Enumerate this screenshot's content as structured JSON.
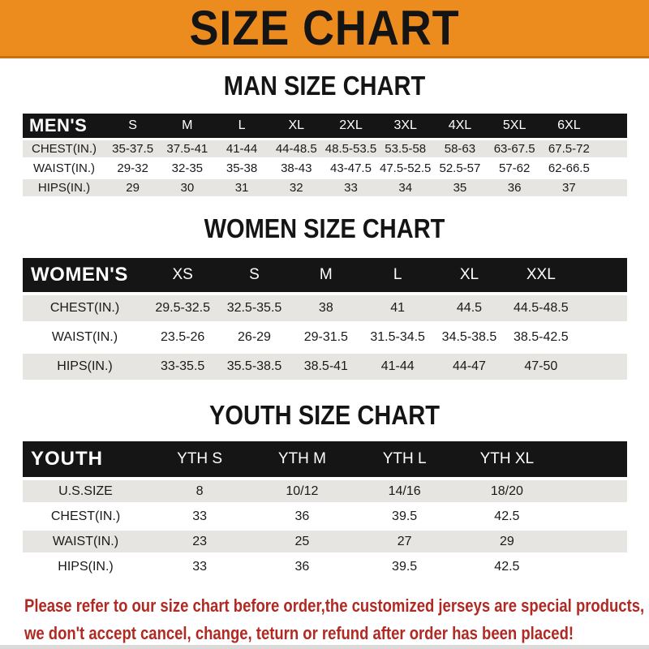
{
  "banner": {
    "title": "SIZE CHART"
  },
  "colors": {
    "banner_orange": "#ec8b1e",
    "banner_border": "#c9720e",
    "table_header_black": "#151515",
    "row_gray": "#e6e5e2",
    "footer_red": "#b02a23"
  },
  "sections": [
    {
      "heading": "MAN SIZE CHART",
      "table": {
        "header_label": "MEN'S",
        "sizes": [
          "S",
          "M",
          "L",
          "XL",
          "2XL",
          "3XL",
          "4XL",
          "5XL",
          "6XL"
        ],
        "rows": [
          {
            "label": "CHEST(IN.)",
            "values": [
              "35-37.5",
              "37.5-41",
              "41-44",
              "44-48.5",
              "48.5-53.5",
              "53.5-58",
              "58-63",
              "63-67.5",
              "67.5-72"
            ]
          },
          {
            "label": "WAIST(IN.)",
            "values": [
              "29-32",
              "32-35",
              "35-38",
              "38-43",
              "43-47.5",
              "47.5-52.5",
              "52.5-57",
              "57-62",
              "62-66.5"
            ]
          },
          {
            "label": "HIPS(IN.)",
            "values": [
              "29",
              "30",
              "31",
              "32",
              "33",
              "34",
              "35",
              "36",
              "37"
            ]
          }
        ]
      }
    },
    {
      "heading": "WOMEN SIZE CHART",
      "table": {
        "header_label": "WOMEN'S",
        "sizes": [
          "XS",
          "S",
          "M",
          "L",
          "XL",
          "XXL"
        ],
        "rows": [
          {
            "label": "CHEST(IN.)",
            "values": [
              "29.5-32.5",
              "32.5-35.5",
              "38",
              "41",
              "44.5",
              "44.5-48.5"
            ]
          },
          {
            "label": "WAIST(IN.)",
            "values": [
              "23.5-26",
              "26-29",
              "29-31.5",
              "31.5-34.5",
              "34.5-38.5",
              "38.5-42.5"
            ]
          },
          {
            "label": "HIPS(IN.)",
            "values": [
              "33-35.5",
              "35.5-38.5",
              "38.5-41",
              "41-44",
              "44-47",
              "47-50"
            ]
          }
        ]
      }
    },
    {
      "heading": "YOUTH SIZE CHART",
      "table": {
        "header_label": "YOUTH",
        "sizes": [
          "YTH S",
          "YTH M",
          "YTH L",
          "YTH XL"
        ],
        "rows": [
          {
            "label": "U.S.SIZE",
            "values": [
              "8",
              "10/12",
              "14/16",
              "18/20"
            ]
          },
          {
            "label": "CHEST(IN.)",
            "values": [
              "33",
              "36",
              "39.5",
              "42.5"
            ]
          },
          {
            "label": "WAIST(IN.)",
            "values": [
              "23",
              "25",
              "27",
              "29"
            ]
          },
          {
            "label": "HIPS(IN.)",
            "values": [
              "33",
              "36",
              "39.5",
              "42.5"
            ]
          }
        ]
      }
    }
  ],
  "footer": {
    "line1": "Please refer to our size chart before order,the customized jerseys are special products,",
    "line2": "we don't accept cancel, change, teturn or refund after order has been placed!"
  }
}
